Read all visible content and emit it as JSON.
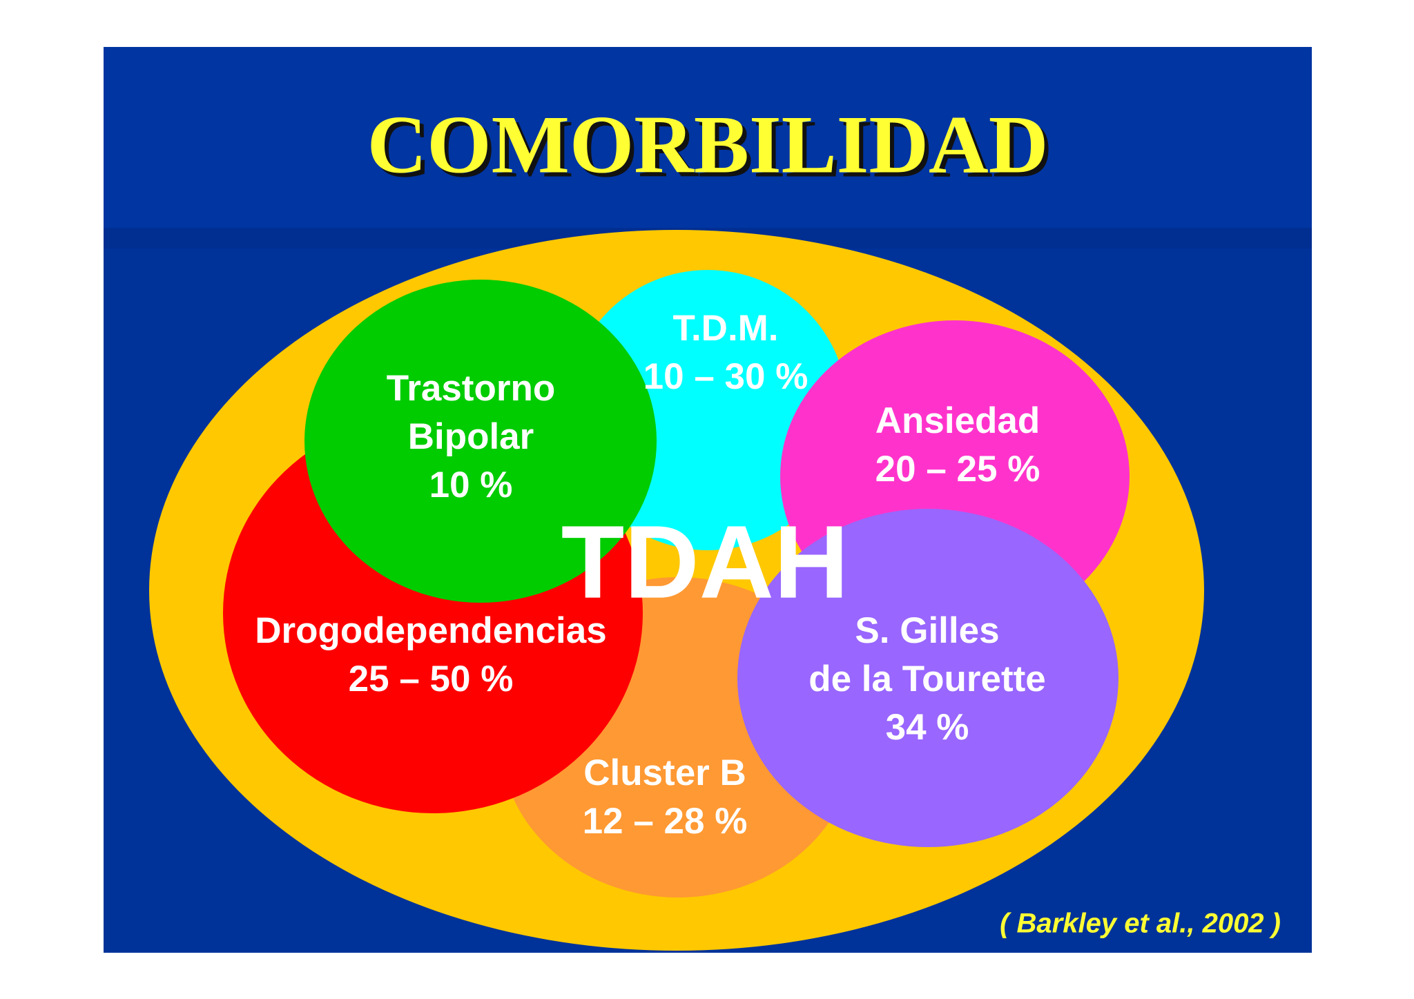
{
  "title": "COMORBILIDAD",
  "center_label": "TDAH",
  "nodes": [
    {
      "lines": [
        "T.D.M.",
        "10 – 30 %"
      ]
    },
    {
      "lines": [
        "Cluster B",
        "12 – 28 %"
      ]
    },
    {
      "lines": [
        "Drogodependencias",
        "25 – 50 %"
      ]
    },
    {
      "lines": [
        "Trastorno",
        "Bipolar",
        "10 %"
      ]
    },
    {
      "lines": [
        "Ansiedad",
        "20 – 25 %"
      ]
    },
    {
      "lines": [
        "S. Gilles",
        "de la Tourette",
        "34 %"
      ]
    }
  ],
  "citation": "( Barkley et al., 2002 )"
}
